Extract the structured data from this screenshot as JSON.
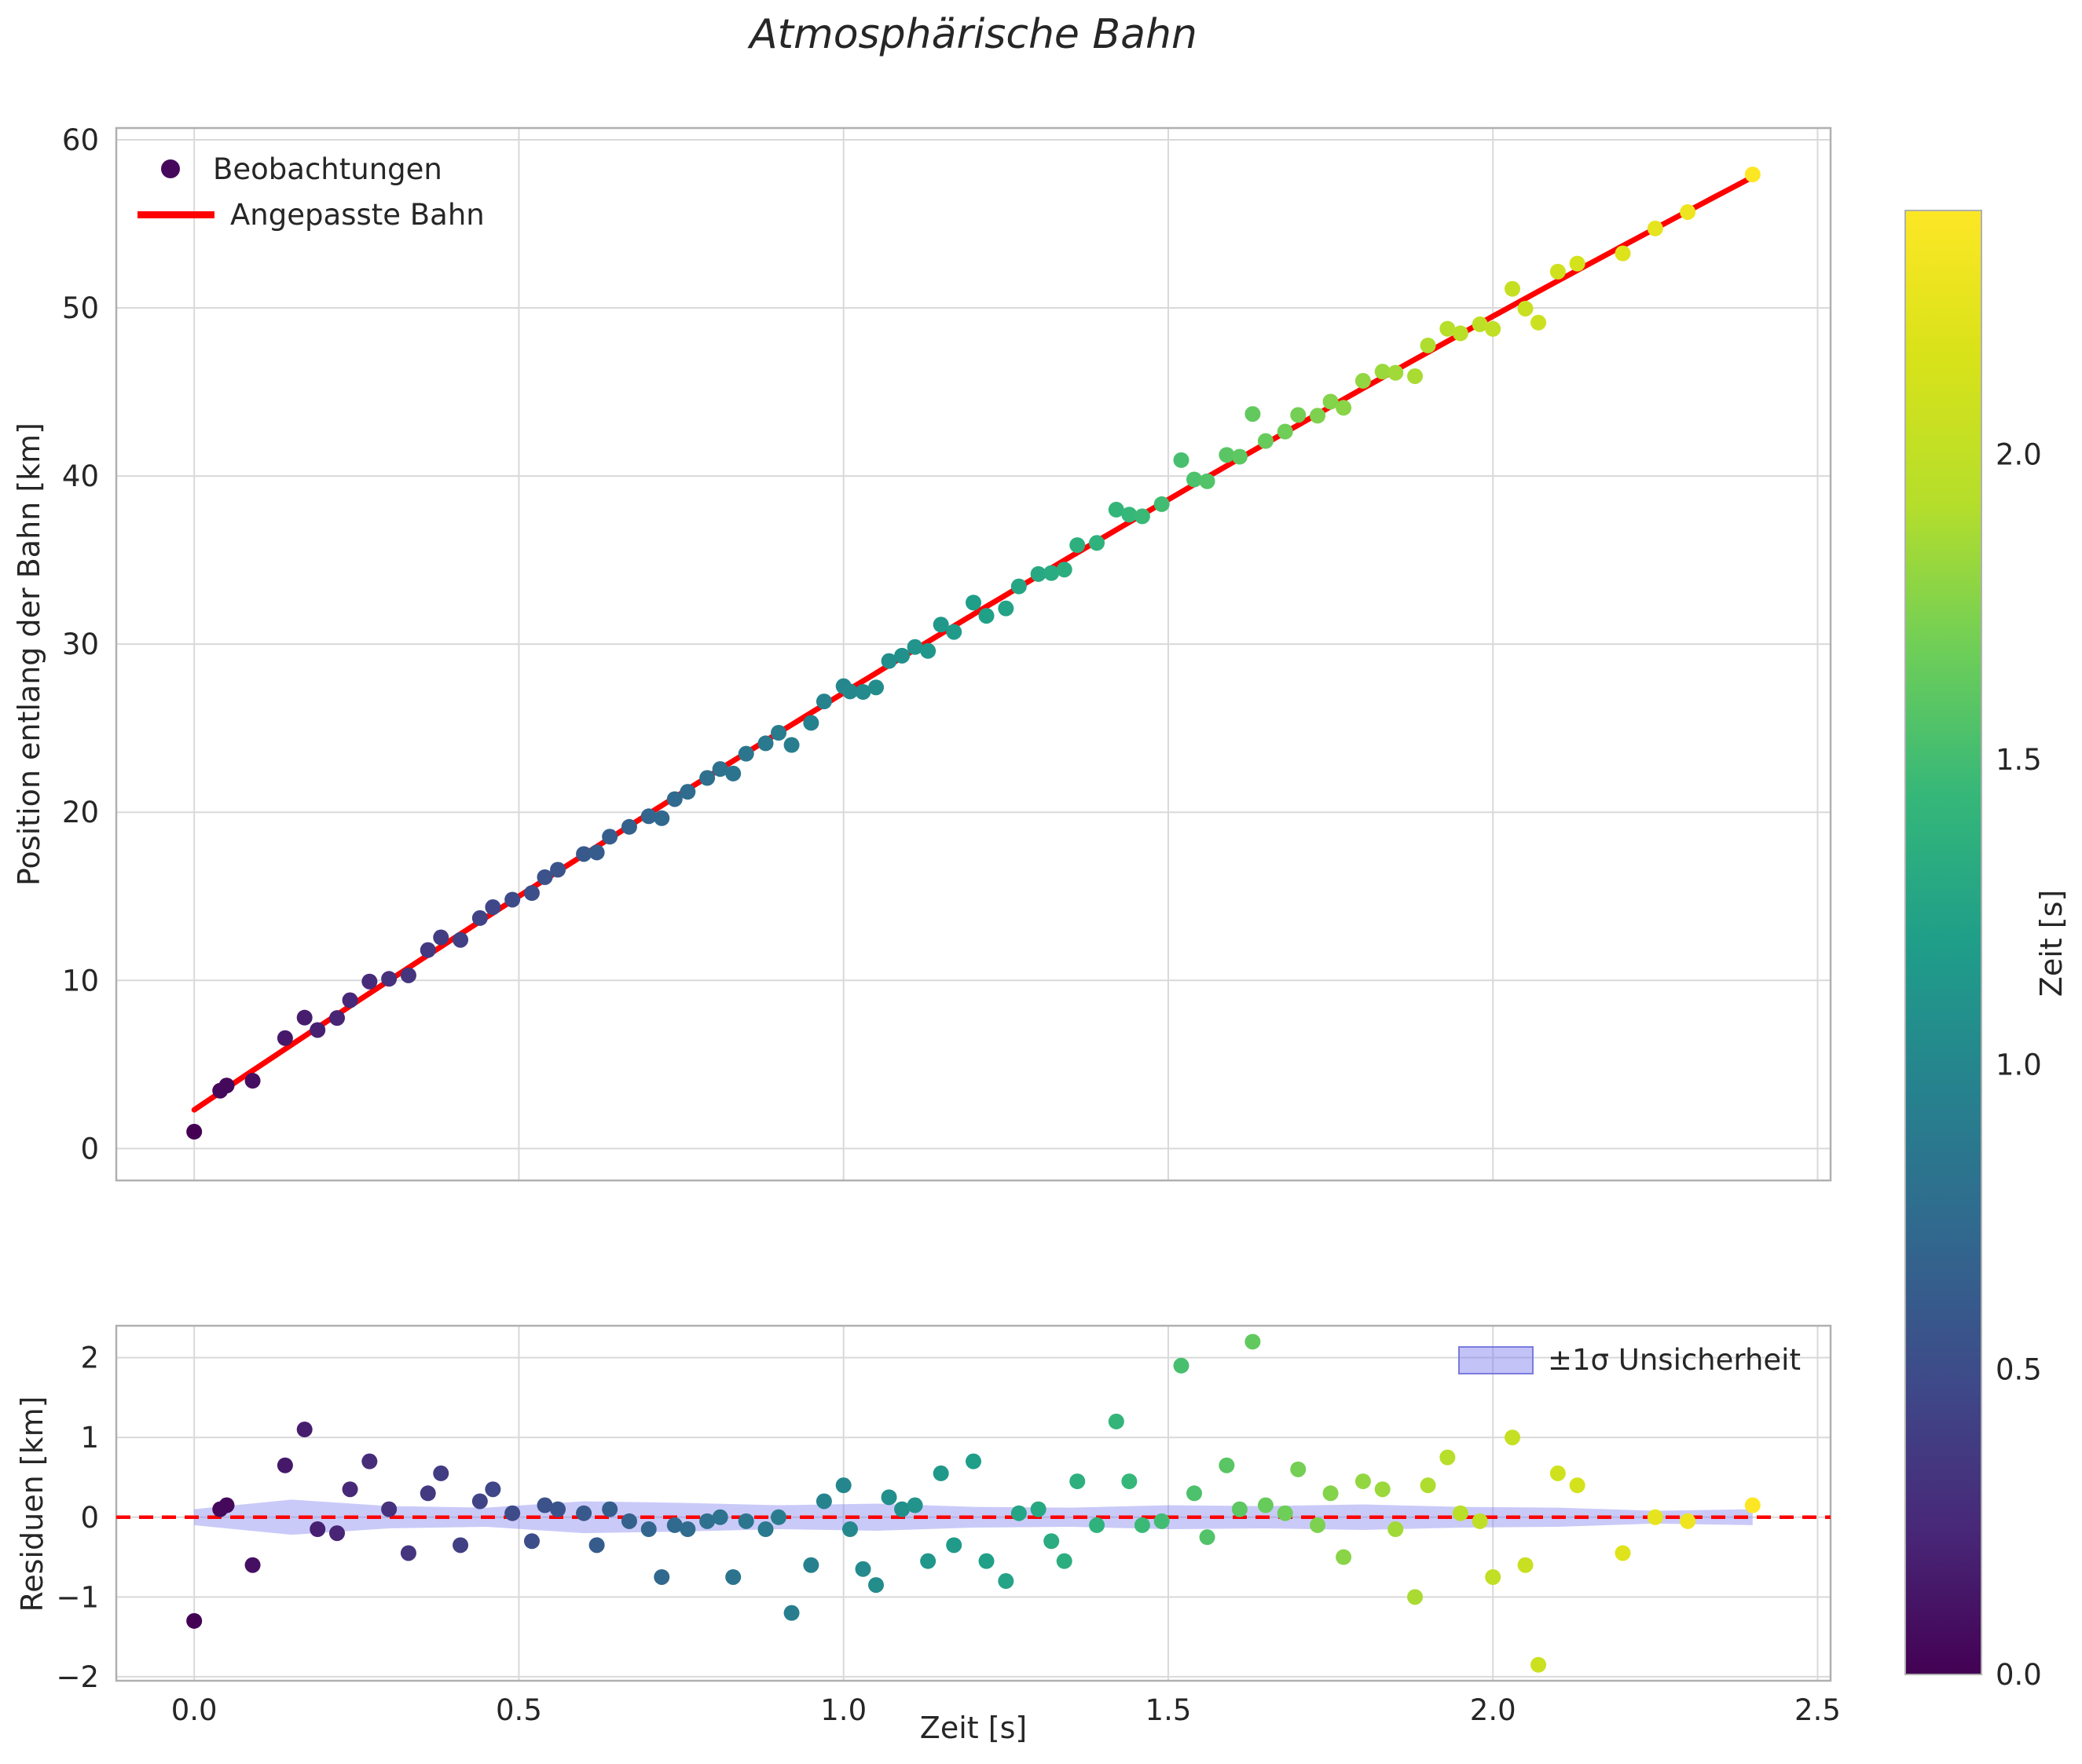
{
  "figure": {
    "title": "Atmosphärische Bahn",
    "background": "#ffffff"
  },
  "top_panel": {
    "ylabel": "Position entlang der Bahn [km]",
    "yticks": [
      0,
      10,
      20,
      30,
      40,
      50,
      60
    ],
    "yticklabels": [
      "0",
      "10",
      "20",
      "30",
      "40",
      "50",
      "60"
    ],
    "xgrid": [
      0,
      0.5,
      1.0,
      1.5,
      2.0,
      2.5
    ],
    "ylim": [
      -1.9,
      60.7
    ],
    "xlim": [
      -0.12,
      2.52
    ],
    "legend": [
      {
        "label": "Beobachtungen",
        "type": "marker"
      },
      {
        "label": "Angepasste Bahn",
        "type": "line"
      }
    ]
  },
  "bottom_panel": {
    "ylabel": "Residuen [km]",
    "xlabel": "Zeit [s]",
    "yticks": [
      -2,
      -1,
      0,
      1,
      2
    ],
    "yticklabels": [
      "−2",
      "−1",
      "0",
      "1",
      "2"
    ],
    "xticks": [
      0,
      0.5,
      1.0,
      1.5,
      2.0,
      2.5
    ],
    "xticklabels": [
      "0.0",
      "0.5",
      "1.0",
      "1.5",
      "2.0",
      "2.5"
    ],
    "ylim": [
      -2.05,
      2.4
    ],
    "xlim": [
      -0.12,
      2.52
    ],
    "legend_label": "±1σ Unsicherheit"
  },
  "colorbar": {
    "label": "Zeit [s]",
    "ticks": [
      0,
      0.5,
      1.0,
      1.5,
      2.0
    ],
    "ticklabels": [
      "0.0",
      "0.5",
      "1.0",
      "1.5",
      "2.0"
    ],
    "vmin": 0,
    "vmax": 2.4
  },
  "colors": {
    "fit_line": "#ff0000",
    "zero_line": "#ff0000",
    "band_fill": "#7b7bf0",
    "band_edge": "#7b7bdd",
    "grid": "#d9d9d9",
    "spine": "#b0b0b0",
    "text": "#262626",
    "legend_marker": "#46085c"
  },
  "colormap": {
    "name": "viridis",
    "stops": [
      [
        0.0,
        "#440154"
      ],
      [
        0.1,
        "#482878"
      ],
      [
        0.2,
        "#3e4a89"
      ],
      [
        0.3,
        "#31688e"
      ],
      [
        0.4,
        "#26828e"
      ],
      [
        0.5,
        "#1f9e89"
      ],
      [
        0.6,
        "#35b779"
      ],
      [
        0.7,
        "#6ece58"
      ],
      [
        0.8,
        "#b5de2b"
      ],
      [
        0.9,
        "#d8e219"
      ],
      [
        1.0,
        "#fde725"
      ]
    ]
  },
  "chart_data": {
    "type": "scatter",
    "title": "Atmosphärische Bahn",
    "xlabel": "Zeit [s]",
    "ylabel_top": "Position entlang der Bahn [km]",
    "ylabel_bottom": "Residuen [km]",
    "color_by": "Zeit [s]",
    "fit": {
      "model": "quadratic",
      "a": 2.3,
      "b": 26.0,
      "c": -1.2,
      "t_range": [
        0,
        2.4
      ]
    },
    "observations": {
      "t": [
        0.0,
        0.04,
        0.05,
        0.09,
        0.14,
        0.17,
        0.19,
        0.22,
        0.24,
        0.27,
        0.3,
        0.33,
        0.36,
        0.38,
        0.41,
        0.44,
        0.46,
        0.49,
        0.52,
        0.54,
        0.56,
        0.6,
        0.62,
        0.64,
        0.67,
        0.7,
        0.72,
        0.74,
        0.76,
        0.79,
        0.81,
        0.83,
        0.85,
        0.88,
        0.9,
        0.92,
        0.95,
        0.97,
        1.0,
        1.01,
        1.03,
        1.05,
        1.07,
        1.09,
        1.11,
        1.13,
        1.15,
        1.17,
        1.2,
        1.22,
        1.25,
        1.27,
        1.3,
        1.32,
        1.34,
        1.36,
        1.39,
        1.42,
        1.44,
        1.46,
        1.49,
        1.52,
        1.54,
        1.56,
        1.59,
        1.61,
        1.63,
        1.65,
        1.68,
        1.7,
        1.73,
        1.75,
        1.77,
        1.8,
        1.83,
        1.85,
        1.88,
        1.9,
        1.93,
        1.95,
        1.98,
        2.0,
        2.03,
        2.05,
        2.07,
        2.1,
        2.13,
        2.2,
        2.25,
        2.3,
        2.4
      ],
      "residual": [
        -1.3,
        0.1,
        0.15,
        -0.6,
        0.65,
        1.1,
        -0.15,
        -0.2,
        0.35,
        0.7,
        0.1,
        -0.45,
        0.3,
        0.55,
        -0.35,
        0.2,
        0.35,
        0.05,
        -0.3,
        0.15,
        0.1,
        0.05,
        -0.35,
        0.1,
        -0.05,
        -0.15,
        -0.75,
        -0.1,
        -0.15,
        -0.05,
        0.0,
        -0.75,
        -0.05,
        -0.15,
        0.0,
        -1.2,
        -0.6,
        0.2,
        0.4,
        -0.15,
        -0.65,
        -0.85,
        0.25,
        0.1,
        0.15,
        -0.55,
        0.55,
        -0.35,
        0.7,
        -0.55,
        -0.8,
        0.05,
        0.1,
        -0.3,
        -0.55,
        0.45,
        -0.1,
        1.2,
        0.45,
        -0.1,
        -0.05,
        1.9,
        0.3,
        -0.25,
        0.65,
        0.1,
        2.2,
        0.15,
        0.05,
        0.6,
        -0.1,
        0.3,
        -0.5,
        0.45,
        0.35,
        -0.15,
        -1.0,
        0.4,
        0.75,
        0.05,
        -0.05,
        -0.75,
        1.0,
        -0.6,
        -1.85,
        0.55,
        0.4,
        -0.45,
        0.0,
        -0.05,
        0.15
      ]
    },
    "band": {
      "t": [
        0.0,
        0.15,
        0.3,
        0.45,
        0.6,
        0.75,
        0.9,
        1.05,
        1.2,
        1.35,
        1.5,
        1.65,
        1.8,
        1.95,
        2.1,
        2.25,
        2.4
      ],
      "sigma": [
        0.1,
        0.22,
        0.14,
        0.12,
        0.2,
        0.18,
        0.15,
        0.17,
        0.13,
        0.12,
        0.15,
        0.14,
        0.16,
        0.13,
        0.12,
        0.08,
        0.1
      ]
    }
  }
}
